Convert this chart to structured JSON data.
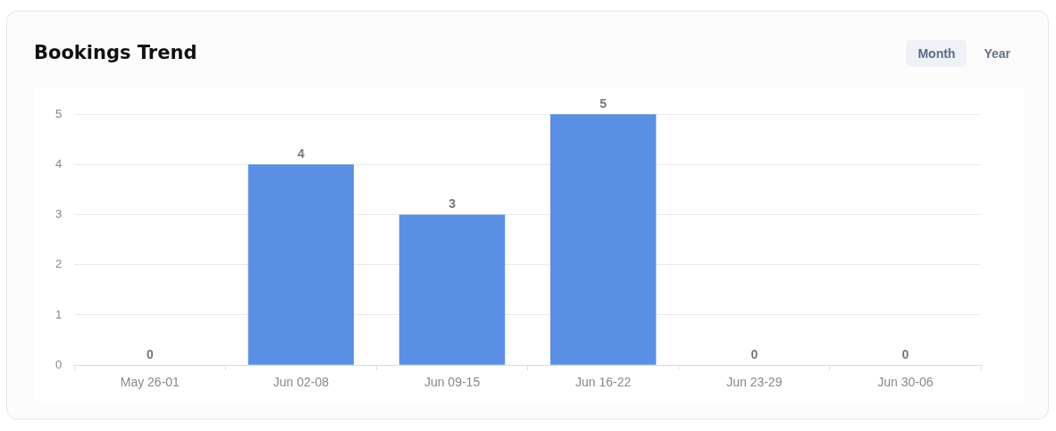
{
  "chart_data": {
    "type": "bar",
    "title": "Bookings Trend",
    "categories": [
      "May 26-01",
      "Jun 02-08",
      "Jun 09-15",
      "Jun 16-22",
      "Jun 23-29",
      "Jun 30-06"
    ],
    "values": [
      0,
      4,
      3,
      5,
      0,
      0
    ],
    "color": "#5b8fe3",
    "ylim": [
      0,
      5
    ],
    "yticks": [
      0,
      1,
      2,
      3,
      4,
      5
    ],
    "grid": "y",
    "data_labels": true,
    "annotations": [
      "Month",
      "Year"
    ]
  }
}
